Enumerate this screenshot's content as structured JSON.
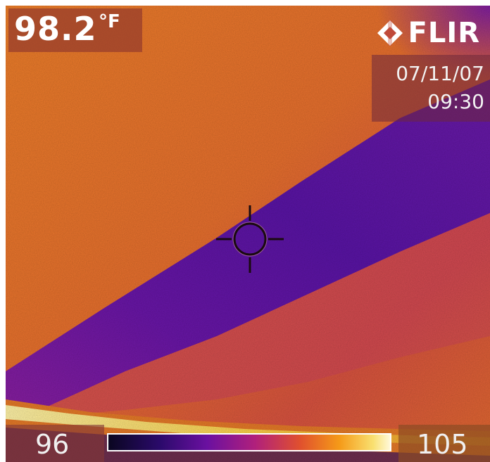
{
  "readout": {
    "temperature_value": "98.2",
    "temperature_unit": "°F"
  },
  "brand": {
    "name": "FLIR"
  },
  "timestamp": {
    "date": "07/11/07",
    "time": "09:30"
  },
  "scale": {
    "min_label": "96",
    "max_label": "105",
    "min_value": 96,
    "max_value": 105
  },
  "palette": {
    "warm_background": "#ec7a2c",
    "cool_band": "#6a1aa8",
    "hot_edge": "#fde878",
    "crosshair": "#1a0a10"
  }
}
